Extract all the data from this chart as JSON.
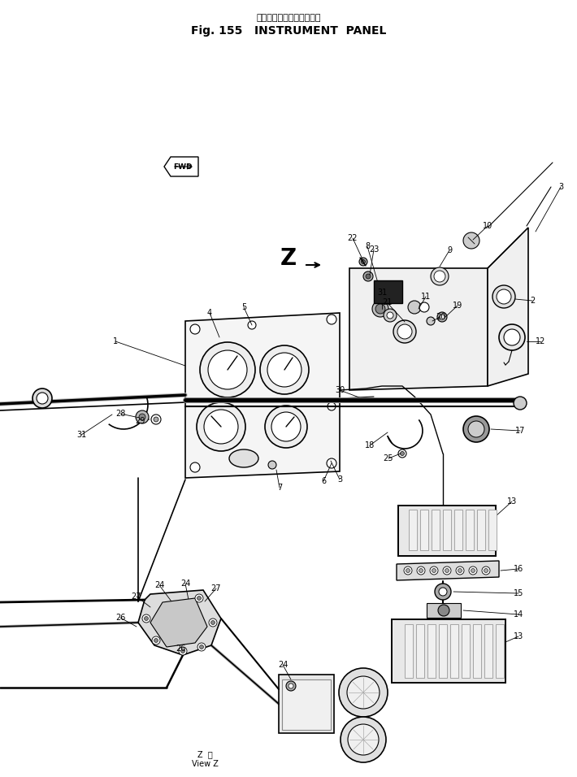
{
  "title_japanese": "インスツルメント　パネル",
  "title_english": "Fig. 155   INSTRUMENT  PANEL",
  "background_color": "#ffffff",
  "line_color": "#000000",
  "fig_width": 7.1,
  "fig_height": 9.56,
  "dpi": 100,
  "view_label": "Z  矢\nView Z"
}
